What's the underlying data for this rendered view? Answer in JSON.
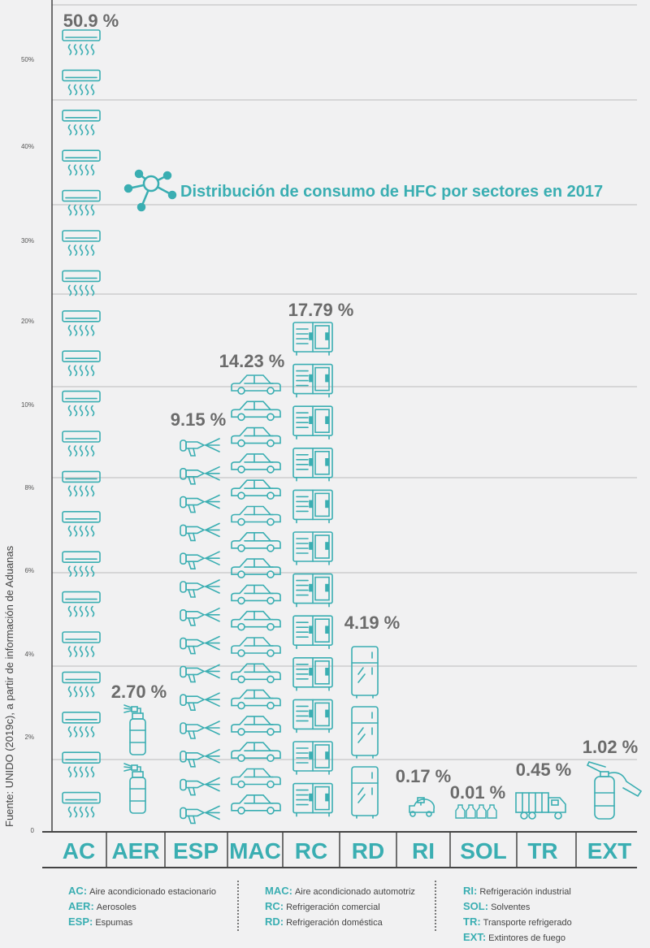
{
  "title": "Distribución de consumo de HFC por sectores en 2017",
  "source": "Fuente: UNIDO (2019c), a partir de información de Aduanas",
  "colors": {
    "accent": "#3aaeb2",
    "label": "#6b6b6b",
    "grid": "#bcbcbc",
    "axis": "#555555"
  },
  "chart_data": {
    "type": "bar",
    "title": "Distribución de consumo de HFC por sectores en 2017",
    "ylabel": "",
    "xlabel": "",
    "categories": [
      "AC",
      "AER",
      "ESP",
      "MAC",
      "RC",
      "RD",
      "RI",
      "SOL",
      "TR",
      "EXT"
    ],
    "values": [
      50.9,
      2.7,
      9.15,
      14.23,
      17.79,
      4.19,
      0.17,
      0.01,
      0.45,
      1.02
    ],
    "value_labels": [
      "50.9 %",
      "2.70 %",
      "9.15 %",
      "14.23 %",
      "17.79 %",
      "4.19 %",
      "0.17 %",
      "0.01 %",
      "0.45 %",
      "1.02 %"
    ],
    "icon_counts": [
      20,
      2,
      14,
      17,
      12,
      3,
      1,
      1,
      1,
      1
    ],
    "icons": [
      "air-conditioner-icon",
      "aerosol-can-icon",
      "spray-foam-gun-icon",
      "car-icon",
      "commercial-fridge-icon",
      "domestic-fridge-icon",
      "industrial-compressor-icon",
      "solvent-bottles-icon",
      "refrigerated-truck-icon",
      "fire-extinguisher-icon"
    ],
    "y_ticks": [
      "0",
      "2%",
      "4%",
      "6%",
      "8%",
      "10%",
      "20%",
      "30%",
      "40%",
      "50%"
    ],
    "scale": "non-linear",
    "grid": true
  },
  "legend": [
    [
      {
        "code": "AC:",
        "label": "Aire acondicionado estacionario"
      },
      {
        "code": "AER:",
        "label": "Aerosoles"
      },
      {
        "code": "ESP:",
        "label": "Espumas"
      }
    ],
    [
      {
        "code": "MAC:",
        "label": "Aire acondicionado automotriz"
      },
      {
        "code": "RC:",
        "label": "Refrigeración comercial"
      },
      {
        "code": "RD:",
        "label": "Refrigeración doméstica"
      }
    ],
    [
      {
        "code": "RI:",
        "label": "Refrigeración industrial"
      },
      {
        "code": "SOL:",
        "label": "Solventes"
      },
      {
        "code": "TR:",
        "label": "Transporte refrigerado"
      },
      {
        "code": "EXT:",
        "label": "Extintores de fuego"
      }
    ]
  ]
}
